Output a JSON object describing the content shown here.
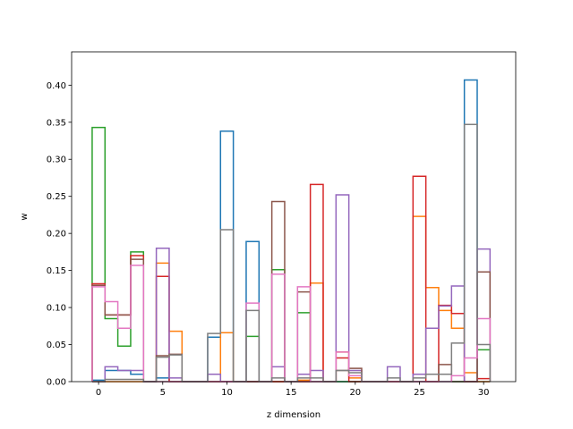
{
  "chart_data": {
    "type": "line",
    "xlabel": "z dimension",
    "ylabel": "w",
    "xlim": [
      -2.1,
      32.5
    ],
    "ylim": [
      0,
      0.445
    ],
    "grid": false,
    "x_ticks": [
      0,
      5,
      10,
      15,
      20,
      25,
      30
    ],
    "y_ticks": [
      0.0,
      0.05,
      0.1,
      0.15,
      0.2,
      0.25,
      0.3,
      0.35,
      0.4
    ],
    "bins": 31,
    "series": [
      {
        "color": "#1f77b4",
        "values": [
          0.002,
          0.015,
          0.015,
          0.01,
          0,
          0.005,
          0,
          0,
          0,
          0.06,
          0.338,
          0,
          0.189,
          0,
          0,
          0,
          0,
          0,
          0,
          0,
          0,
          0,
          0,
          0,
          0,
          0,
          0,
          0,
          0,
          0.407,
          0
        ]
      },
      {
        "color": "#ff7f0e",
        "values": [
          0,
          0,
          0,
          0,
          0,
          0.16,
          0.068,
          0,
          0,
          0,
          0.066,
          0,
          0,
          0,
          0,
          0,
          0.002,
          0.133,
          0,
          0.04,
          0.005,
          0,
          0,
          0,
          0,
          0.223,
          0.127,
          0.096,
          0.072,
          0.012,
          0
        ]
      },
      {
        "color": "#2ca02c",
        "values": [
          0.343,
          0.085,
          0.048,
          0.175,
          0,
          0,
          0,
          0,
          0,
          0,
          0,
          0,
          0.061,
          0,
          0.151,
          0,
          0.093,
          0,
          0,
          0,
          0,
          0,
          0,
          0,
          0,
          0,
          0,
          0,
          0,
          0,
          0.043
        ]
      },
      {
        "color": "#d62728",
        "values": [
          0.132,
          0.09,
          0.09,
          0.17,
          0,
          0.142,
          0,
          0,
          0,
          0,
          0,
          0,
          0,
          0,
          0,
          0,
          0,
          0.266,
          0,
          0.032,
          0,
          0,
          0,
          0,
          0,
          0.277,
          0,
          0.103,
          0.092,
          0,
          0.004
        ]
      },
      {
        "color": "#9467bd",
        "values": [
          0,
          0.02,
          0.015,
          0.015,
          0,
          0.18,
          0.005,
          0,
          0,
          0.01,
          0,
          0,
          0,
          0,
          0.02,
          0,
          0.01,
          0.015,
          0,
          0.252,
          0.015,
          0,
          0,
          0.02,
          0,
          0.01,
          0.072,
          0.102,
          0.129,
          0,
          0.179
        ]
      },
      {
        "color": "#8c564b",
        "values": [
          0.13,
          0.09,
          0.09,
          0.165,
          0,
          0.035,
          0.037,
          0,
          0,
          0,
          0,
          0,
          0,
          0,
          0.243,
          0,
          0.121,
          0,
          0,
          0.015,
          0.018,
          0,
          0,
          0,
          0,
          0,
          0,
          0.023,
          0,
          0,
          0.148
        ]
      },
      {
        "color": "#e377c2",
        "values": [
          0.128,
          0.108,
          0.072,
          0.157,
          0,
          0,
          0,
          0,
          0,
          0,
          0,
          0,
          0.106,
          0,
          0.145,
          0,
          0.128,
          0,
          0,
          0.04,
          0.008,
          0,
          0,
          0,
          0,
          0,
          0,
          0,
          0.008,
          0.032,
          0.085
        ]
      },
      {
        "color": "#7f7f7f",
        "values": [
          0,
          0.003,
          0.003,
          0.003,
          0,
          0.033,
          0.036,
          0,
          0,
          0.065,
          0.205,
          0,
          0.096,
          0,
          0.005,
          0,
          0.005,
          0.005,
          0,
          0.015,
          0.012,
          0,
          0,
          0.005,
          0,
          0.005,
          0.01,
          0.01,
          0.052,
          0.347,
          0.05
        ]
      }
    ]
  }
}
